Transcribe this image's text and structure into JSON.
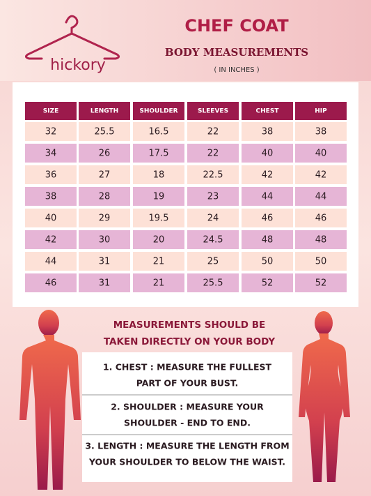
{
  "logo": "hickory",
  "title": "CHEF COAT",
  "subtitle": "BODY MEASUREMENTS",
  "units": "( IN INCHES )",
  "table": {
    "columns": [
      "SIZE",
      "LENGTH",
      "SHOULDER",
      "SLEEVES",
      "CHEST",
      "HIP"
    ],
    "rows": [
      [
        32,
        25.5,
        16.5,
        22,
        38,
        38
      ],
      [
        34,
        26,
        17.5,
        22,
        40,
        40
      ],
      [
        36,
        27,
        18,
        22.5,
        42,
        42
      ],
      [
        38,
        28,
        19,
        23,
        44,
        44
      ],
      [
        40,
        29,
        19.5,
        24,
        46,
        46
      ],
      [
        42,
        30,
        20,
        24.5,
        48,
        48
      ],
      [
        44,
        31,
        21,
        25,
        50,
        50
      ],
      [
        46,
        31,
        21,
        25.5,
        52,
        52
      ]
    ]
  },
  "instructions": {
    "heading": [
      "MEASUREMENTS SHOULD BE",
      "TAKEN DIRECTLY ON YOUR BODY"
    ],
    "items": [
      [
        "1.  CHEST : MEASURE THE FULLEST",
        "PART OF YOUR BUST."
      ],
      [
        "2.  SHOULDER : MEASURE YOUR",
        "SHOULDER - END TO END."
      ],
      [
        "3.  LENGTH : MEASURE THE LENGTH FROM",
        "YOUR SHOULDER TO BELOW THE WAIST."
      ]
    ]
  }
}
